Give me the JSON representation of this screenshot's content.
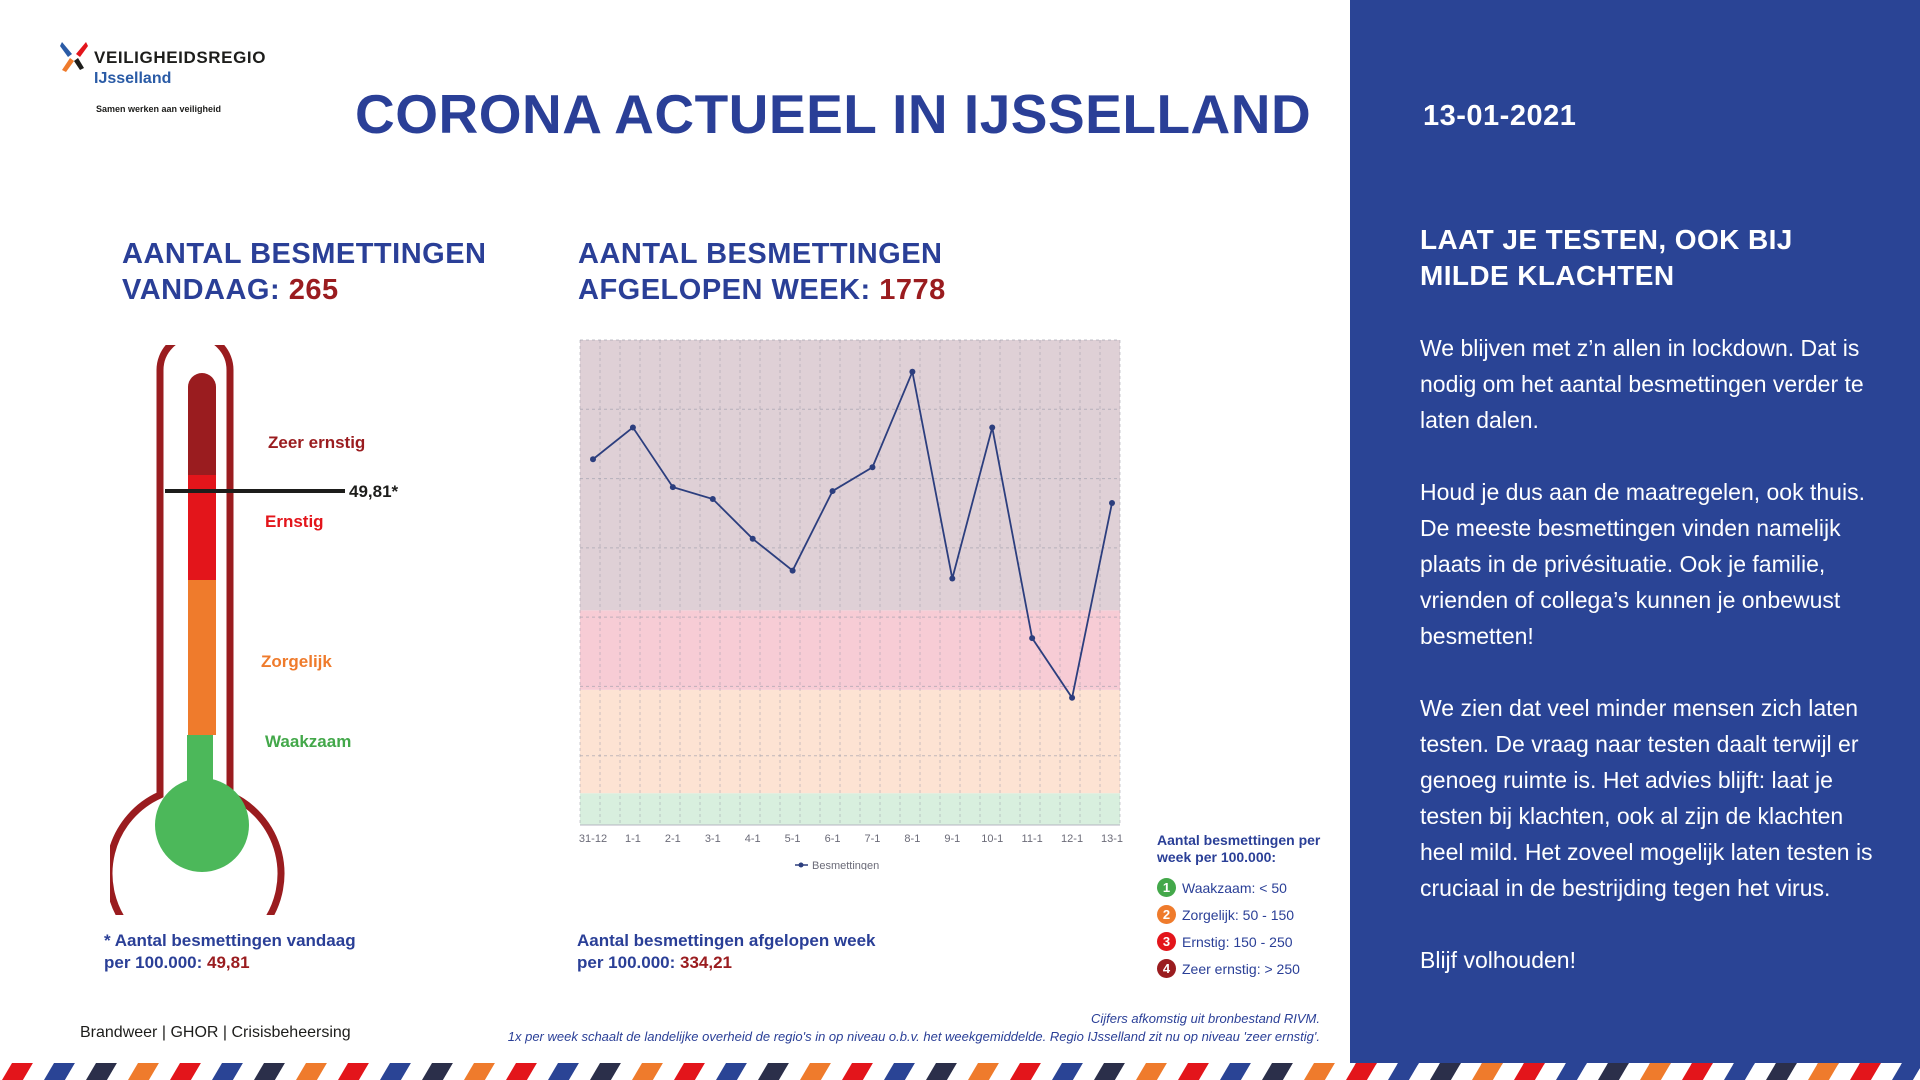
{
  "header": {
    "title": "CORONA ACTUEEL IN IJSSELLAND",
    "logo": {
      "name": "VEILIGHEIDSREGIO",
      "region": "IJsselland",
      "tagline": "Samen werken aan veiligheid"
    }
  },
  "today": {
    "title_line1": "AANTAL BESMETTINGEN",
    "title_line2": "VANDAAG: ",
    "value": "265",
    "marker_label": "49,81*",
    "marker_value": 49.81,
    "levels": [
      "Zeer ernstig",
      "Ernstig",
      "Zorgelijk",
      "Waakzaam"
    ],
    "note_line1": "* Aantal besmettingen vandaag",
    "note_line2": "per 100.000: ",
    "note_value": "49,81"
  },
  "week": {
    "title_line1": "AANTAL BESMETTINGEN",
    "title_line2": "AFGELOPEN WEEK: ",
    "value": "1778",
    "note_line1": "Aantal besmettingen afgelopen week",
    "note_line2": "per 100.000: ",
    "note_value": "334,21"
  },
  "chart_data": {
    "type": "line",
    "categories": [
      "31-12",
      "1-1",
      "2-1",
      "3-1",
      "4-1",
      "5-1",
      "6-1",
      "7-1",
      "8-1",
      "9-1",
      "10-1",
      "11-1",
      "12-1",
      "13-1"
    ],
    "series": [
      {
        "name": "Besmettingen",
        "values": [
          46,
          50,
          42.5,
          41,
          36,
          32,
          42,
          45,
          57,
          31,
          50,
          23.5,
          16,
          40.5
        ],
        "color": "#2c3e7e"
      }
    ],
    "ylim": [
      0,
      61
    ],
    "bands": [
      {
        "from": 0,
        "to": 4,
        "color": "#d8efde"
      },
      {
        "from": 4,
        "to": 17,
        "color": "#fde3d3"
      },
      {
        "from": 17,
        "to": 27,
        "color": "#f7ccd5"
      },
      {
        "from": 27,
        "to": 61,
        "color": "#dfd0d6"
      }
    ],
    "grid": true,
    "legend": "bottom"
  },
  "legend": {
    "title": "Aantal besmettingen per week per 100.000:",
    "items": [
      {
        "num": "1",
        "label": "Waakzaam: < 50",
        "color": "#43a84a"
      },
      {
        "num": "2",
        "label": "Zorgelijk: 50 - 150",
        "color": "#ef7b2c"
      },
      {
        "num": "3",
        "label": "Ernstig: 150 - 250",
        "color": "#e3151b"
      },
      {
        "num": "4",
        "label": "Zeer ernstig: > 250",
        "color": "#9a1c1f"
      }
    ]
  },
  "footer": {
    "brand_1": "Brandweer",
    "brand_2": "GHOR",
    "brand_3": "Crisisbeheersing",
    "source_line1": "Cijfers afkomstig uit bronbestand RIVM.",
    "source_line2": "1x per week schaalt de landelijke overheid de regio's in op niveau o.b.v. het weekgemiddelde. Regio IJsselland zit nu op niveau 'zeer ernstig'."
  },
  "side": {
    "date": "13-01-2021",
    "title_line1": "LAAT JE TESTEN, OOK BIJ",
    "title_line2": "MILDE KLACHTEN",
    "paragraphs": [
      "We blijven met z’n allen in lockdown. Dat is nodig om het aantal besmettingen verder te laten dalen.",
      "Houd je dus aan de maatregelen, ook thuis. De meeste besmettingen vinden namelijk plaats in de privésituatie. Ook je familie, vrienden of collega’s kunnen je onbewust besmetten!",
      "We zien dat veel minder mensen zich laten testen. De vraag naar testen daalt terwijl er genoeg ruimte is. Het advies blijft: laat je testen bij klachten, ook al zijn de klachten heel mild. Het zoveel mogelijk laten testen is cruciaal in de bestrijding tegen het virus.",
      "Blijf volhouden!"
    ]
  },
  "colors": {
    "brand_blue": "#2a3f97",
    "sidebar": "#2a4495",
    "dark_red": "#9a1c1f",
    "red": "#e3151b",
    "orange": "#ef7b2c",
    "green": "#43a84a"
  }
}
